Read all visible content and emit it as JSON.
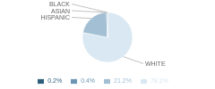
{
  "chart_data": {
    "type": "pie",
    "categories": [
      "WHITE",
      "HISPANIC",
      "ASIAN",
      "BLACK"
    ],
    "values": [
      78.2,
      21.2,
      0.4,
      0.2
    ],
    "value_labels": [
      "78.2%",
      "21.2%",
      "0.4%",
      "0.2%"
    ],
    "colors": [
      "#d9e8f2",
      "#a3bfd4",
      "#6b97b5",
      "#2d5f7c"
    ],
    "legend": "bottom"
  }
}
